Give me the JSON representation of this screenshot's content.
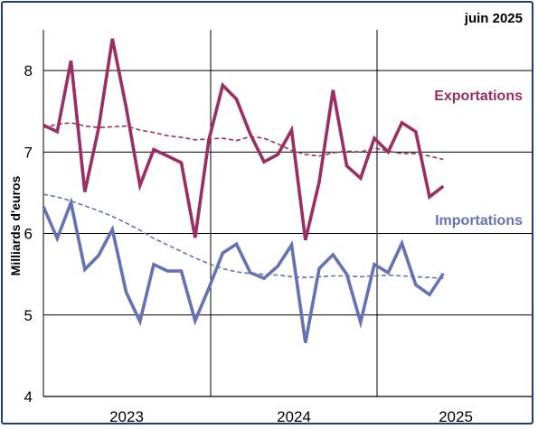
{
  "chart_data": {
    "type": "line",
    "date_label": "juin 2025",
    "ylabel": "Milliards d'euros",
    "ylim": [
      4,
      8.5
    ],
    "yticks": [
      4,
      5,
      6,
      7,
      8
    ],
    "grid": true,
    "year_labels": [
      "2023",
      "2024",
      "2025"
    ],
    "colors": {
      "exports": "#9b2f63",
      "imports": "#6673b3"
    },
    "series": [
      {
        "name": "Exportations",
        "style": "solid",
        "values": [
          7.33,
          7.25,
          8.12,
          6.51,
          7.29,
          8.39,
          7.55,
          6.59,
          7.03,
          6.95,
          6.87,
          5.95,
          7.15,
          7.82,
          7.65,
          7.22,
          6.88,
          6.97,
          7.27,
          5.92,
          6.63,
          7.76,
          6.83,
          6.68,
          7.17,
          7.0,
          7.36,
          7.25,
          6.45,
          6.58
        ]
      },
      {
        "name": "Exportations (tendance)",
        "style": "dashed",
        "values": [
          7.3,
          7.34,
          7.36,
          7.32,
          7.3,
          7.31,
          7.32,
          7.27,
          7.24,
          7.2,
          7.18,
          7.15,
          7.16,
          7.17,
          7.14,
          7.19,
          7.17,
          7.1,
          7.02,
          6.97,
          6.95,
          6.99,
          7.01,
          7.0,
          7.05,
          7.01,
          6.98,
          6.98,
          6.95,
          6.91
        ]
      },
      {
        "name": "Importations",
        "style": "solid",
        "values": [
          6.33,
          5.94,
          6.38,
          5.56,
          5.73,
          6.05,
          5.28,
          4.92,
          5.62,
          5.54,
          5.54,
          4.93,
          5.33,
          5.76,
          5.87,
          5.52,
          5.45,
          5.6,
          5.86,
          4.66,
          5.57,
          5.74,
          5.5,
          4.91,
          5.62,
          5.52,
          5.88,
          5.37,
          5.25,
          5.51
        ]
      },
      {
        "name": "Importations (tendance)",
        "style": "dashed",
        "values": [
          6.48,
          6.45,
          6.4,
          6.34,
          6.28,
          6.21,
          6.13,
          6.04,
          5.94,
          5.86,
          5.78,
          5.7,
          5.63,
          5.57,
          5.53,
          5.51,
          5.5,
          5.49,
          5.47,
          5.46,
          5.47,
          5.48,
          5.48,
          5.47,
          5.48,
          5.49,
          5.48,
          5.47,
          5.46,
          5.45
        ]
      }
    ]
  }
}
